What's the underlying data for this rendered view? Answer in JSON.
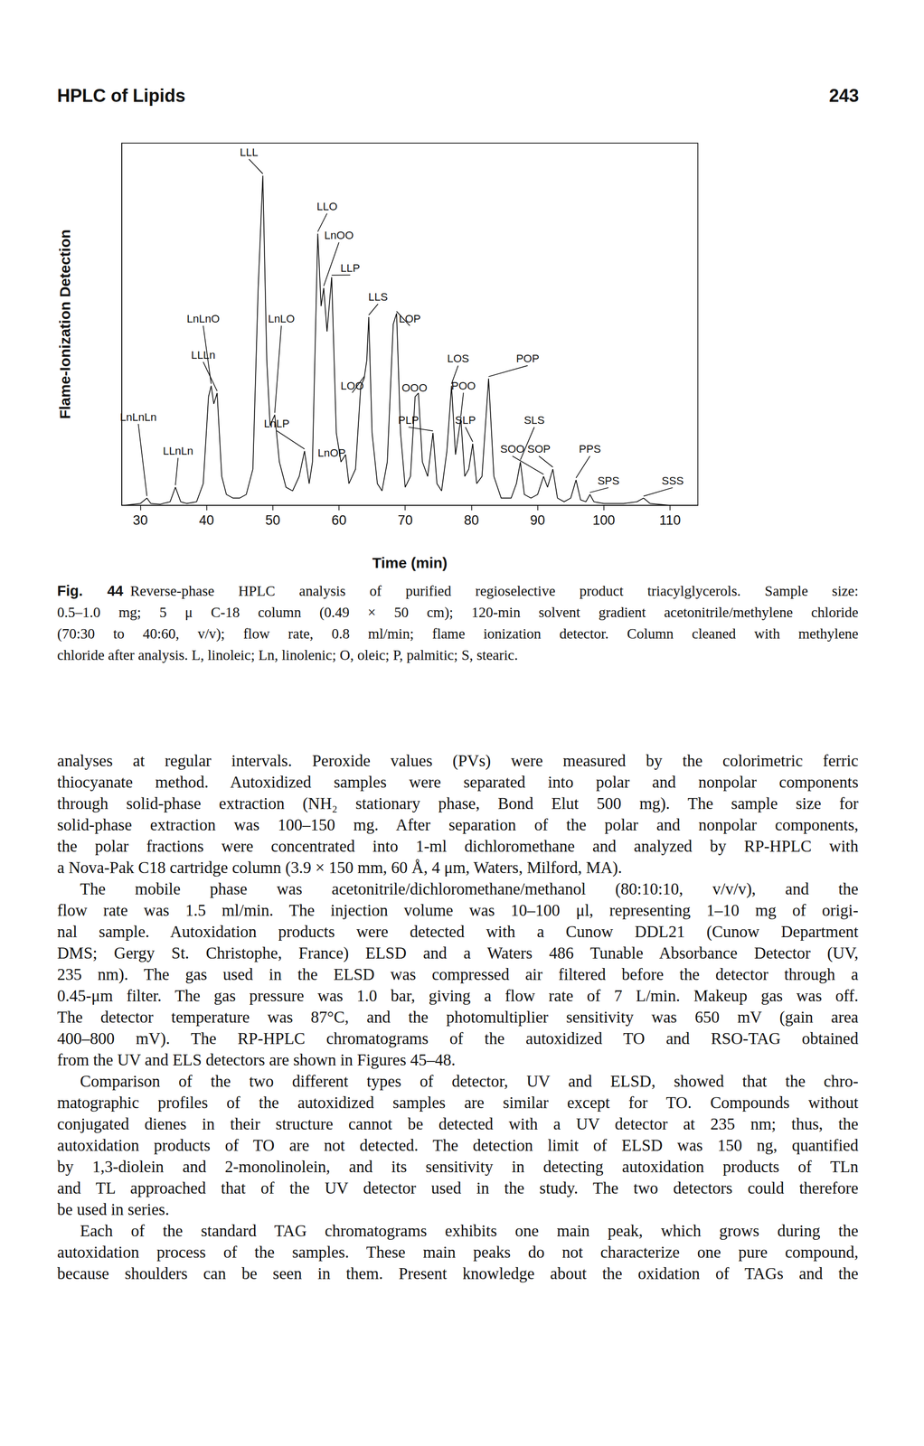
{
  "header": {
    "title": "HPLC of Lipids",
    "page": "243"
  },
  "chart_data": {
    "type": "line",
    "x_label": "Time (min)",
    "y_label": "Flame-Ionization Detection",
    "color": "#000000",
    "xlim": [
      27.2,
      114.2
    ],
    "xticks": [
      30,
      40,
      50,
      60,
      70,
      80,
      90,
      100,
      110
    ],
    "ylim": [
      0,
      100
    ],
    "tick_labels": "x",
    "grid": false,
    "x": [
      27.5,
      30,
      31,
      31.6,
      33,
      34.5,
      35.3,
      36.1,
      37,
      38.5,
      39.5,
      40.3,
      40.7,
      41.1,
      41.6,
      42.3,
      43,
      44,
      45,
      46,
      47,
      47.8,
      48.5,
      49.1,
      49.6,
      50.3,
      51,
      52,
      53,
      54,
      54.8,
      55.5,
      56,
      56.8,
      57.3,
      57.7,
      58.2,
      58.9,
      59.6,
      60.3,
      61,
      61.5,
      62.5,
      63.3,
      63.8,
      64.2,
      64.5,
      65,
      65.8,
      66.5,
      67.3,
      68.2,
      68.7,
      69.3,
      70,
      70.8,
      71.5,
      72,
      72.6,
      73.4,
      74.2,
      74.8,
      75.5,
      76.3,
      77,
      77.6,
      78.4,
      79,
      79.6,
      80.2,
      80.8,
      81.6,
      82.6,
      83.4,
      84.5,
      86,
      86.8,
      87.4,
      88,
      89,
      90,
      90.9,
      91.5,
      92.3,
      93,
      94,
      95,
      95.8,
      96.5,
      97.3,
      97.9,
      98.5,
      100,
      103,
      105,
      106,
      107,
      110,
      114
    ],
    "values": [
      0,
      0.5,
      2,
      0.5,
      0.3,
      1,
      5,
      1,
      0.5,
      1,
      6,
      30,
      33,
      28,
      31,
      8,
      3,
      2,
      2,
      3,
      10,
      60,
      91,
      40,
      22,
      25,
      12,
      5,
      4,
      8,
      15,
      6,
      12,
      75,
      55,
      60,
      48,
      63,
      20,
      12,
      14,
      6,
      10,
      33,
      35,
      40,
      52,
      20,
      6,
      4,
      12,
      50,
      53,
      20,
      5,
      8,
      30,
      31,
      12,
      8,
      20,
      6,
      4,
      15,
      33,
      14,
      24,
      8,
      10,
      17,
      6,
      8,
      35,
      8,
      2,
      2,
      6,
      12,
      3,
      2,
      3,
      8,
      5,
      10,
      2,
      1,
      2,
      7,
      1.5,
      1,
      3,
      1,
      0.5,
      0.5,
      1,
      2,
      0.5,
      0,
      0
    ],
    "annotations": [
      {
        "text": "LnLnLn",
        "x": 31,
        "y": 2
      },
      {
        "text": "LLnLn",
        "x": 35.3,
        "y": 5
      },
      {
        "text": "LnLnO",
        "x": 40.7,
        "y": 33
      },
      {
        "text": "LLLn",
        "x": 41.6,
        "y": 31
      },
      {
        "text": "LLL",
        "x": 48.5,
        "y": 91
      },
      {
        "text": "LnLO",
        "x": 50.3,
        "y": 25
      },
      {
        "text": "LnLP",
        "x": 54.8,
        "y": 15
      },
      {
        "text": "LLO",
        "x": 56.8,
        "y": 75
      },
      {
        "text": "LnOO",
        "x": 57.7,
        "y": 60
      },
      {
        "text": "LLP",
        "x": 58.9,
        "y": 63
      },
      {
        "text": "LLS",
        "x": 64.5,
        "y": 52
      },
      {
        "text": "LOO",
        "x": 63.8,
        "y": 35
      },
      {
        "text": "LnOP",
        "x": 61,
        "y": 14
      },
      {
        "text": "LOP",
        "x": 68.7,
        "y": 53
      },
      {
        "text": "OOO",
        "x": 72,
        "y": 31
      },
      {
        "text": "PLP",
        "x": 74.2,
        "y": 20
      },
      {
        "text": "LOS",
        "x": 77,
        "y": 33
      },
      {
        "text": "POO",
        "x": 78.4,
        "y": 24
      },
      {
        "text": "POP",
        "x": 82.6,
        "y": 35
      },
      {
        "text": "SLP",
        "x": 80.2,
        "y": 17
      },
      {
        "text": "SLS",
        "x": 87.4,
        "y": 12
      },
      {
        "text": "SOO",
        "x": 90.9,
        "y": 8
      },
      {
        "text": "SOP",
        "x": 92.3,
        "y": 10
      },
      {
        "text": "PPS",
        "x": 95.8,
        "y": 7
      },
      {
        "text": "SPS",
        "x": 97.9,
        "y": 3
      },
      {
        "text": "SSS",
        "x": 106,
        "y": 2
      }
    ]
  },
  "caption": {
    "label": "Fig. 44",
    "lines": [
      "Reverse-phase HPLC analysis of purified regioselective product triacylglycerols. Sample size:",
      "0.5–1.0 mg; 5 μ C-18 column (0.49 × 50 cm); 120-min solvent gradient acetonitrile/methylene chloride",
      "(70:30 to 40:60, v/v); flow rate, 0.8 ml/min; flame ionization detector. Column cleaned with methylene",
      "chloride after analysis. L, linoleic; Ln, linolenic; O, oleic; P, palmitic; S, stearic."
    ]
  },
  "body": {
    "paragraphs": [
      {
        "lines": [
          "analyses at regular intervals. Peroxide values (PVs) were measured by the colorimetric ferric",
          "thiocyanate method. Autoxidized samples were separated into polar and nonpolar components",
          "through solid-phase extraction (NH₂ stationary phase, Bond Elut 500 mg). The sample size for",
          "solid-phase extraction was 100–150 mg. After separation of the polar and nonpolar components,",
          "the polar fractions were concentrated into 1-ml dichloromethane and analyzed by RP-HPLC with",
          "a Nova-Pak C18 cartridge column (3.9 × 150 mm, 60 Å, 4 μm, Waters, Milford, MA)."
        ]
      },
      {
        "lines": [
          "The mobile phase was acetonitrile/dichloromethane/methanol (80:10:10, v/v/v), and the",
          "flow rate was 1.5 ml/min. The injection volume was 10–100 μl, representing 1–10 mg of origi-",
          "nal sample. Autoxidation products were detected with a Cunow DDL21 (Cunow Department",
          "DMS; Gergy St. Christophe, France) ELSD and a Waters 486 Tunable Absorbance Detector (UV,",
          "235 nm). The gas used in the ELSD was compressed air filtered before the detector through a",
          "0.45-μm filter. The gas pressure was 1.0 bar, giving a flow rate of 7 L/min. Makeup gas was off.",
          "The detector temperature was 87°C, and the photomultiplier sensitivity was 650 mV (gain area",
          "400–800 mV). The RP-HPLC chromatograms of the autoxidized TO and RSO-TAG obtained",
          "from the UV and ELS detectors are shown in Figures 45–48."
        ]
      },
      {
        "lines": [
          "Comparison of the two different types of detector, UV and ELSD, showed that the chro-",
          "matographic profiles of the autoxidized samples are similar except for TO. Compounds without",
          "conjugated dienes in their structure cannot be detected with a UV detector at 235 nm; thus, the",
          "autoxidation products of TO are not detected. The detection limit of ELSD was 150 ng, quantified",
          "by 1,3-diolein and 2-monolinolein, and its sensitivity in detecting autoxidation products of TLn",
          "and TL approached that of the UV detector used in the study. The two detectors could therefore",
          "be used in series."
        ]
      },
      {
        "lines": [
          "Each of the standard TAG chromatograms exhibits one main peak, which grows during the",
          "autoxidation process of the samples. These main peaks do not characterize one pure compound,",
          "because shoulders can be seen in them. Present knowledge about the oxidation of TAGs and the"
        ]
      }
    ]
  }
}
